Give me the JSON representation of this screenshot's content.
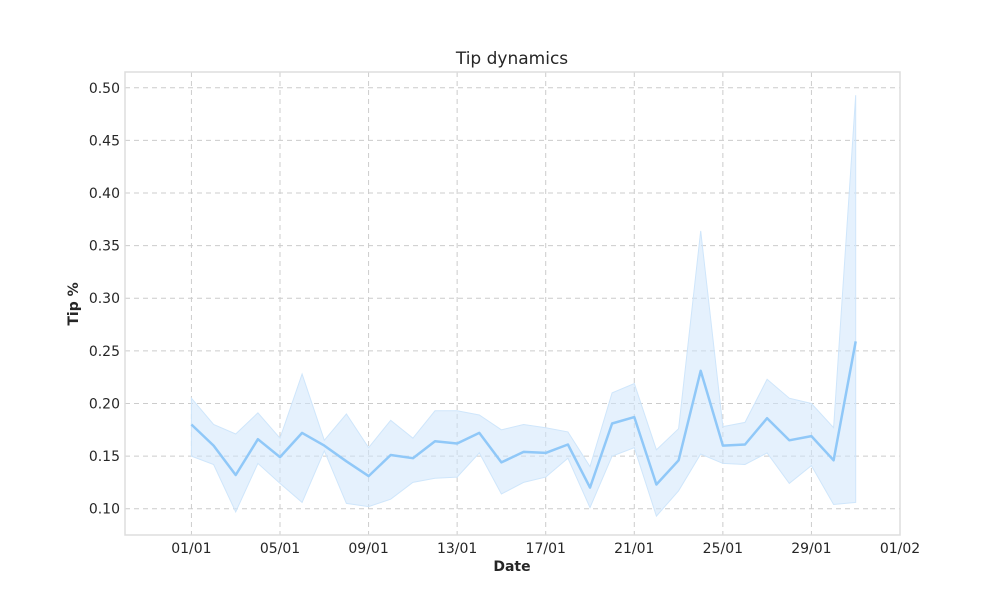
{
  "chart_data": {
    "type": "line",
    "title": "Tip dynamics",
    "xlabel": "Date",
    "ylabel": "Tip %",
    "grid": true,
    "line_color": "#90c8f8",
    "band_color": "#cfe6fb",
    "x_tick_labels": [
      "01/01",
      "05/01",
      "09/01",
      "13/01",
      "17/01",
      "21/01",
      "25/01",
      "29/01",
      "01/02"
    ],
    "y_ticks": [
      0.1,
      0.15,
      0.2,
      0.25,
      0.3,
      0.35,
      0.4,
      0.45,
      0.5
    ],
    "ylim": [
      0.075,
      0.515
    ],
    "x_range": [
      "2023-12-29",
      "2024-02-02"
    ],
    "series": [
      {
        "x": [
          "2024-01-01",
          "2024-01-02",
          "2024-01-03",
          "2024-01-04",
          "2024-01-05",
          "2024-01-06",
          "2024-01-07",
          "2024-01-08",
          "2024-01-09",
          "2024-01-10",
          "2024-01-11",
          "2024-01-12",
          "2024-01-13",
          "2024-01-14",
          "2024-01-15",
          "2024-01-16",
          "2024-01-17",
          "2024-01-18",
          "2024-01-19",
          "2024-01-20",
          "2024-01-21",
          "2024-01-22",
          "2024-01-23",
          "2024-01-24",
          "2024-01-25",
          "2024-01-26",
          "2024-01-27",
          "2024-01-28",
          "2024-01-29",
          "2024-01-30",
          "2024-01-31"
        ],
        "values": [
          0.18,
          0.16,
          0.132,
          0.166,
          0.149,
          0.172,
          0.16,
          0.145,
          0.131,
          0.151,
          0.148,
          0.164,
          0.162,
          0.172,
          0.144,
          0.154,
          0.153,
          0.161,
          0.12,
          0.181,
          0.187,
          0.123,
          0.146,
          0.231,
          0.16,
          0.161,
          0.186,
          0.165,
          0.169,
          0.146,
          0.259
        ],
        "lower": [
          0.15,
          0.142,
          0.097,
          0.143,
          0.124,
          0.106,
          0.155,
          0.105,
          0.102,
          0.109,
          0.125,
          0.129,
          0.13,
          0.153,
          0.114,
          0.125,
          0.13,
          0.148,
          0.101,
          0.15,
          0.158,
          0.093,
          0.117,
          0.152,
          0.143,
          0.142,
          0.153,
          0.124,
          0.141,
          0.104,
          0.106
        ],
        "upper": [
          0.205,
          0.18,
          0.171,
          0.191,
          0.167,
          0.228,
          0.165,
          0.19,
          0.158,
          0.184,
          0.167,
          0.193,
          0.193,
          0.189,
          0.175,
          0.18,
          0.177,
          0.173,
          0.14,
          0.21,
          0.219,
          0.156,
          0.176,
          0.364,
          0.178,
          0.182,
          0.223,
          0.205,
          0.2,
          0.177,
          0.493
        ]
      }
    ]
  }
}
